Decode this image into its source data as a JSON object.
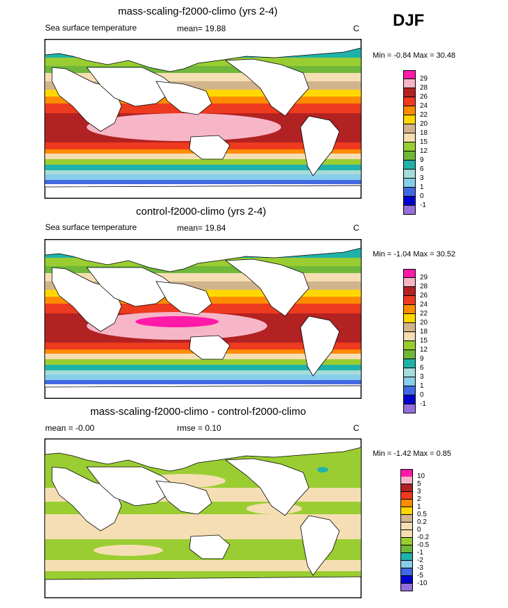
{
  "season": "DJF",
  "panels": [
    {
      "title": "mass-scaling-f2000-climo (yrs 2-4)",
      "left_label": "Sea surface temperature",
      "center_label": "mean=  19.88",
      "units": "C",
      "minmax": "Min =  -0.84 Max =  30.48",
      "levels": [
        "29",
        "28",
        "26",
        "24",
        "22",
        "20",
        "18",
        "15",
        "12",
        "9",
        "6",
        "3",
        "1",
        "0",
        "-1"
      ]
    },
    {
      "title": "control-f2000-climo (yrs 2-4)",
      "left_label": "Sea surface temperature",
      "center_label": "mean=  19.84",
      "units": "C",
      "minmax": "Min =  -1.04 Max =  30.52",
      "levels": [
        "29",
        "28",
        "26",
        "24",
        "22",
        "20",
        "18",
        "15",
        "12",
        "9",
        "6",
        "3",
        "1",
        "0",
        "-1"
      ]
    },
    {
      "title": "mass-scaling-f2000-climo - control-f2000-climo",
      "left_label": "mean =  -0.00",
      "center_label": "rmse =   0.10",
      "units": "C",
      "minmax": "Min =  -1.42 Max =   0.85",
      "levels": [
        "10",
        "5",
        "3",
        "2",
        "1",
        "0.5",
        "0.2",
        "0",
        "-0.2",
        "-0.5",
        "-1",
        "-2",
        "-3",
        "-5",
        "-10"
      ]
    }
  ],
  "colors": {
    "sst_scale": [
      "#ff1aa8",
      "#f7b6c8",
      "#b22222",
      "#ee3a1e",
      "#ff8c00",
      "#ffd700",
      "#d2b48c",
      "#f5deb3",
      "#9acd32",
      "#6fb83a",
      "#20b2aa",
      "#a6dcd8",
      "#87ceeb",
      "#4169e1",
      "#0000cd",
      "#9370db"
    ],
    "diff_scale": [
      "#ff1aa8",
      "#f7b6c8",
      "#b22222",
      "#ee3a1e",
      "#ff8c00",
      "#ffd700",
      "#d2b48c",
      "#f5deb3",
      "#f5deb3",
      "#9acd32",
      "#6fb83a",
      "#20b2aa",
      "#87ceeb",
      "#4169e1",
      "#0000cd",
      "#9370db"
    ]
  }
}
